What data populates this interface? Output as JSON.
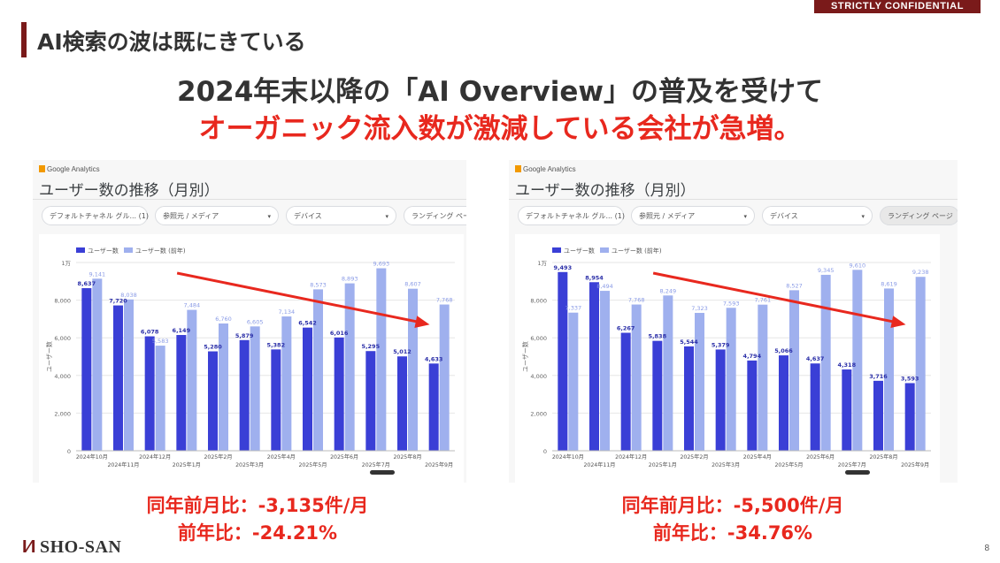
{
  "confidential": "STRICTLY CONFIDENTIAL",
  "page_title": "AI検索の波は既にきている",
  "headline1": "2024年末以降の「AI Overview」の普及を受けて",
  "headline2": "オーガニック流入数が激減している会社が急増。",
  "colors": {
    "current": "#3a3fd6",
    "previous": "#9fb0ee",
    "accent": "#e8281e",
    "brand": "#7a1a1a"
  },
  "panels": [
    {
      "ga_label": "Google Analytics",
      "title": "ユーザー数の推移（月別）",
      "filters": [
        "デフォルトチャネル グル... (1)",
        "参照元 / メディア",
        "デバイス",
        "ランディング ページ"
      ],
      "stat1": "同年前月比：-3,135件/月",
      "stat2": "前年比：-24.21%"
    },
    {
      "ga_label": "Google Analytics",
      "title": "ユーザー数の推移（月別）",
      "filters": [
        "デフォルトチャネル グル... (1)",
        "参照元 / メディア",
        "デバイス",
        "ランディング ページ"
      ],
      "stat1": "同年前月比：-5,500件/月",
      "stat2": "前年比：-34.76%"
    }
  ],
  "chart_data": [
    {
      "type": "bar",
      "title": "",
      "xlabel": "",
      "ylabel": "ユーザー数",
      "ylim": [
        0,
        10000
      ],
      "yticks": [
        "0",
        "2,000",
        "4,000",
        "6,000",
        "8,000",
        "1万"
      ],
      "categories": [
        "2024年10月",
        "2024年11月",
        "2024年12月",
        "2025年1月",
        "2025年2月",
        "2025年3月",
        "2025年4月",
        "2025年5月",
        "2025年6月",
        "2025年7月",
        "2025年8月",
        "2025年9月"
      ],
      "series": [
        {
          "name": "ユーザー数",
          "values": [
            8637,
            7720,
            6078,
            6149,
            5280,
            5879,
            5382,
            6542,
            6016,
            5295,
            5012,
            4633
          ],
          "labels": [
            "8,637",
            "7,720",
            "6,078",
            "6,149",
            "5,280",
            "5,879",
            "5,382",
            "6,542",
            "6,016",
            "5,295",
            "5,012",
            "4,633"
          ]
        },
        {
          "name": "ユーザー数 (前年)",
          "values": [
            9141,
            8038,
            5583,
            7484,
            6760,
            6605,
            7134,
            8573,
            8893,
            9693,
            8607,
            7768
          ],
          "labels": [
            "9,141",
            "8,038",
            "5,583",
            "7,484",
            "6,760",
            "6,605",
            "7,134",
            "8,573",
            "8,893",
            "9,693",
            "8,607",
            "7,768"
          ]
        }
      ]
    },
    {
      "type": "bar",
      "title": "",
      "xlabel": "",
      "ylabel": "ユーザー数",
      "ylim": [
        0,
        10000
      ],
      "yticks": [
        "0",
        "2,000",
        "4,000",
        "6,000",
        "8,000",
        "1万"
      ],
      "categories": [
        "2024年10月",
        "2024年11月",
        "2024年12月",
        "2025年1月",
        "2025年2月",
        "2025年3月",
        "2025年4月",
        "2025年5月",
        "2025年6月",
        "2025年7月",
        "2025年8月",
        "2025年9月"
      ],
      "series": [
        {
          "name": "ユーザー数",
          "values": [
            9493,
            8954,
            6267,
            5838,
            5544,
            5379,
            4794,
            5066,
            4637,
            4318,
            3716,
            3593
          ],
          "labels": [
            "9,493",
            "8,954",
            "6,267",
            "5,838",
            "5,544",
            "5,379",
            "4,794",
            "5,066",
            "4,637",
            "4,318",
            "3,716",
            "3,593"
          ]
        },
        {
          "name": "ユーザー数 (前年)",
          "values": [
            7337,
            8494,
            7768,
            8249,
            7323,
            7593,
            7761,
            8527,
            9345,
            9610,
            8619,
            9238
          ],
          "labels": [
            "7,337",
            "8,494",
            "7,768",
            "8,249",
            "7,323",
            "7,593",
            "7,761",
            "8,527",
            "9,345",
            "9,610",
            "8,619",
            "9,238"
          ]
        }
      ]
    }
  ],
  "footer": {
    "logo_mark": "I∕I",
    "logo_text": "SHO-SAN",
    "page_number": "8"
  }
}
